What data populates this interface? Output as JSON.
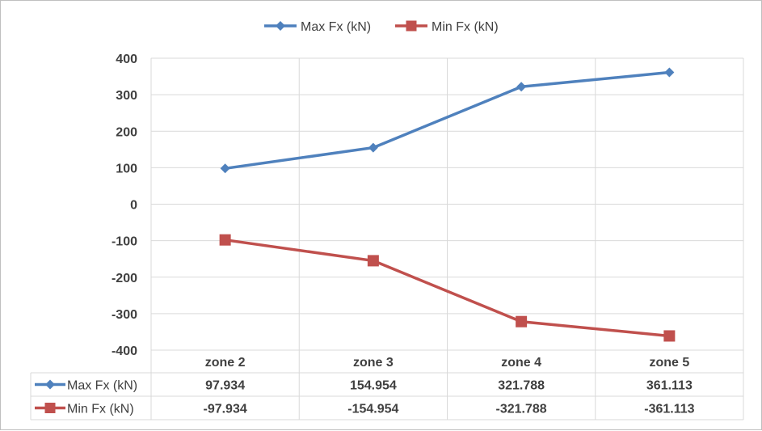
{
  "chart_data": {
    "type": "line",
    "title": "",
    "xlabel": "",
    "ylabel": "",
    "categories": [
      "zone 2",
      "zone 3",
      "zone 4",
      "zone 5"
    ],
    "ylim": [
      -400,
      400
    ],
    "yticks": [
      400,
      300,
      200,
      100,
      0,
      -100,
      -200,
      -300,
      -400
    ],
    "ytick_labels": [
      "400",
      "300",
      "200",
      "100",
      "0",
      "-100",
      "-200",
      "-300",
      "-400"
    ],
    "grid": "vertical-and-horizontal",
    "legend": "top-center",
    "data_table": true,
    "series": [
      {
        "name": "Max Fx (kN)",
        "values": [
          97.934,
          154.954,
          321.788,
          361.113
        ],
        "value_labels": [
          "97.934",
          "154.954",
          "321.788",
          "361.113"
        ],
        "color": "#4f81bd",
        "marker": "diamond"
      },
      {
        "name": "Min Fx (kN)",
        "values": [
          -97.934,
          -154.954,
          -321.788,
          -361.113
        ],
        "value_labels": [
          "-97.934",
          "-154.954",
          "-321.788",
          "-361.113"
        ],
        "color": "#c0504d",
        "marker": "square"
      }
    ]
  }
}
